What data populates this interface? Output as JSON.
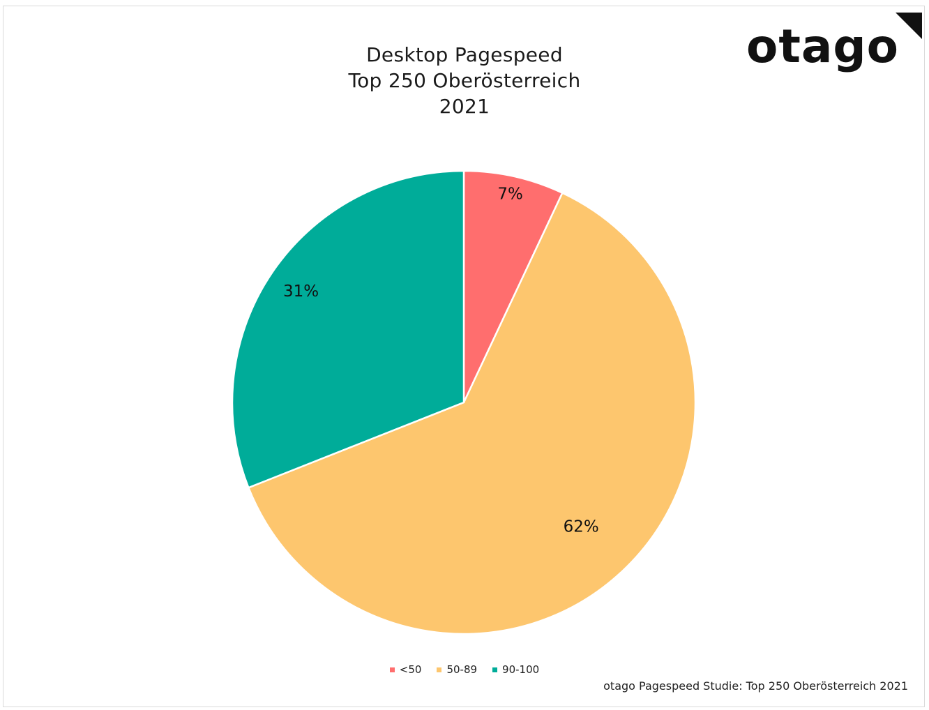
{
  "title": {
    "line1": "Desktop Pagespeed",
    "line2": "Top 250 Oberösterreich",
    "line3": "2021"
  },
  "logo": {
    "text": "otago"
  },
  "source_note": "otago Pagespeed Studie: Top 250 Oberösterreich 2021",
  "chart_data": {
    "type": "pie",
    "title": "Desktop Pagespeed Top 250 Oberösterreich 2021",
    "slices": [
      {
        "label": "<50",
        "value": 7,
        "display": "7%",
        "color": "#ff6e6e"
      },
      {
        "label": "50-89",
        "value": 62,
        "display": "62%",
        "color": "#fdc66e"
      },
      {
        "label": "90-100",
        "value": 31,
        "display": "31%",
        "color": "#00ac99"
      }
    ],
    "legend_position": "bottom",
    "start": "top, clockwise"
  }
}
